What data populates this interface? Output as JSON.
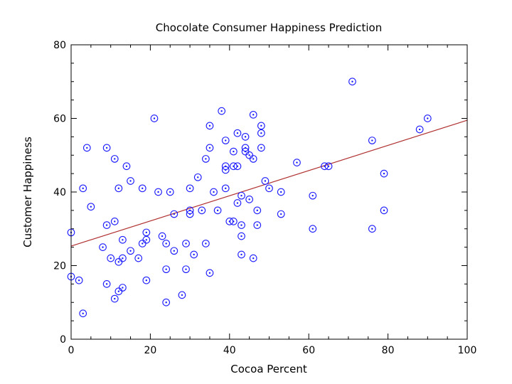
{
  "chart_data": {
    "type": "scatter",
    "title": "Chocolate Consumer Happiness Prediction",
    "xlabel": "Cocoa Percent",
    "ylabel": "Customer Happiness",
    "xlim": [
      0,
      100
    ],
    "ylim": [
      0,
      80
    ],
    "xticks": [
      0,
      20,
      40,
      60,
      80,
      100
    ],
    "yticks": [
      0,
      20,
      40,
      60,
      80
    ],
    "grid": false,
    "marker_color": "#1a1aff",
    "fit_color": "#b03030",
    "fit_line": {
      "type": "linear",
      "intercept": 25.3,
      "slope": 0.342
    },
    "points": [
      [
        0,
        29
      ],
      [
        0,
        17
      ],
      [
        2,
        16
      ],
      [
        3,
        41
      ],
      [
        3,
        7
      ],
      [
        4,
        52
      ],
      [
        5,
        36
      ],
      [
        8,
        25
      ],
      [
        9,
        52
      ],
      [
        9,
        31
      ],
      [
        9,
        15
      ],
      [
        10,
        22
      ],
      [
        11,
        32
      ],
      [
        11,
        49
      ],
      [
        11,
        11
      ],
      [
        12,
        41
      ],
      [
        12,
        21
      ],
      [
        12,
        13
      ],
      [
        13,
        27
      ],
      [
        13,
        22
      ],
      [
        13,
        14
      ],
      [
        14,
        47
      ],
      [
        15,
        43
      ],
      [
        15,
        24
      ],
      [
        17,
        22
      ],
      [
        18,
        41
      ],
      [
        18,
        26
      ],
      [
        19,
        29
      ],
      [
        19,
        27
      ],
      [
        19,
        16
      ],
      [
        21,
        60
      ],
      [
        22,
        40
      ],
      [
        23,
        28
      ],
      [
        24,
        26
      ],
      [
        24,
        19
      ],
      [
        24,
        10
      ],
      [
        25,
        40
      ],
      [
        26,
        34
      ],
      [
        26,
        24
      ],
      [
        28,
        12
      ],
      [
        29,
        26
      ],
      [
        29,
        19
      ],
      [
        30,
        41
      ],
      [
        30,
        35
      ],
      [
        30,
        34
      ],
      [
        31,
        23
      ],
      [
        32,
        44
      ],
      [
        33,
        35
      ],
      [
        34,
        49
      ],
      [
        34,
        26
      ],
      [
        35,
        58
      ],
      [
        35,
        52
      ],
      [
        35,
        18
      ],
      [
        36,
        40
      ],
      [
        37,
        35
      ],
      [
        38,
        62
      ],
      [
        39,
        54
      ],
      [
        39,
        47
      ],
      [
        39,
        46
      ],
      [
        39,
        41
      ],
      [
        40,
        32
      ],
      [
        41,
        51
      ],
      [
        41,
        47
      ],
      [
        41,
        32
      ],
      [
        42,
        56
      ],
      [
        42,
        47
      ],
      [
        42,
        37
      ],
      [
        43,
        39
      ],
      [
        43,
        31
      ],
      [
        43,
        28
      ],
      [
        43,
        23
      ],
      [
        44,
        55
      ],
      [
        44,
        52
      ],
      [
        44,
        51
      ],
      [
        45,
        50
      ],
      [
        45,
        38
      ],
      [
        46,
        61
      ],
      [
        46,
        49
      ],
      [
        46,
        22
      ],
      [
        47,
        35
      ],
      [
        47,
        31
      ],
      [
        48,
        58
      ],
      [
        48,
        56
      ],
      [
        48,
        52
      ],
      [
        49,
        43
      ],
      [
        50,
        41
      ],
      [
        53,
        40
      ],
      [
        53,
        34
      ],
      [
        57,
        48
      ],
      [
        61,
        39
      ],
      [
        61,
        30
      ],
      [
        64,
        47
      ],
      [
        65,
        47
      ],
      [
        71,
        70
      ],
      [
        76,
        54
      ],
      [
        76,
        30
      ],
      [
        79,
        45
      ],
      [
        79,
        35
      ],
      [
        88,
        57
      ],
      [
        90,
        60
      ]
    ]
  }
}
